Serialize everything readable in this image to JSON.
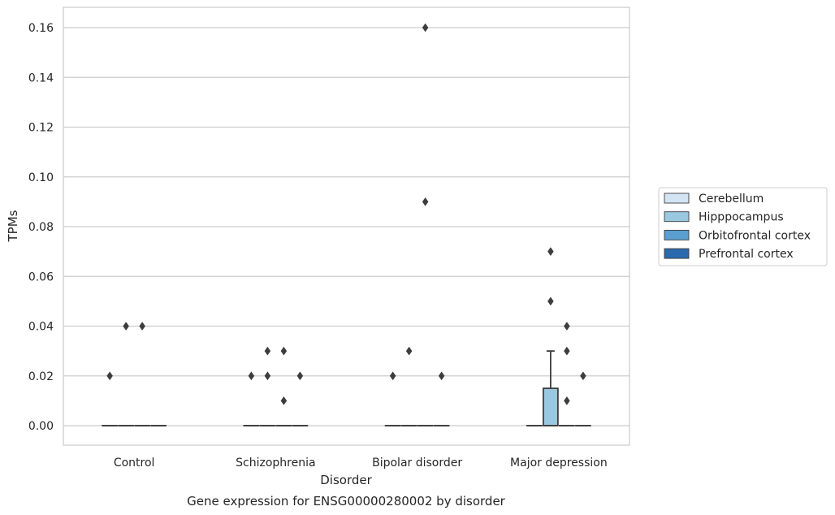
{
  "chart_data": {
    "type": "box",
    "title": "",
    "caption": "Gene expression for ENSG00000280002 by disorder",
    "xlabel": "Disorder",
    "ylabel": "TPMs",
    "ylim": [
      -0.008,
      0.168
    ],
    "yticks": [
      0.0,
      0.02,
      0.04,
      0.06,
      0.08,
      0.1,
      0.12,
      0.14,
      0.16
    ],
    "ytick_labels": [
      "0.00",
      "0.02",
      "0.04",
      "0.06",
      "0.08",
      "0.10",
      "0.12",
      "0.14",
      "0.16"
    ],
    "grid": "horizontal",
    "legend_position": "right",
    "categories": [
      "Control",
      "Schizophrenia",
      "Bipolar disorder",
      "Major depression"
    ],
    "series": [
      {
        "name": "Cerebellum",
        "color": "#d3e4f3",
        "boxes": [
          {
            "q1": 0,
            "median": 0,
            "q3": 0,
            "whisker_low": 0,
            "whisker_high": 0,
            "outliers": [
              0.02
            ]
          },
          {
            "q1": 0,
            "median": 0,
            "q3": 0,
            "whisker_low": 0,
            "whisker_high": 0,
            "outliers": [
              0.02
            ]
          },
          {
            "q1": 0,
            "median": 0,
            "q3": 0,
            "whisker_low": 0,
            "whisker_high": 0,
            "outliers": [
              0.02
            ]
          },
          {
            "q1": 0,
            "median": 0,
            "q3": 0,
            "whisker_low": 0,
            "whisker_high": 0,
            "outliers": []
          }
        ]
      },
      {
        "name": "Hipppocampus",
        "color": "#9ac8e0",
        "boxes": [
          {
            "q1": 0,
            "median": 0,
            "q3": 0,
            "whisker_low": 0,
            "whisker_high": 0,
            "outliers": [
              0.04
            ]
          },
          {
            "q1": 0,
            "median": 0,
            "q3": 0,
            "whisker_low": 0,
            "whisker_high": 0,
            "outliers": [
              0.03,
              0.02
            ]
          },
          {
            "q1": 0,
            "median": 0,
            "q3": 0,
            "whisker_low": 0,
            "whisker_high": 0,
            "outliers": [
              0.03
            ]
          },
          {
            "q1": 0,
            "median": 0,
            "q3": 0.015,
            "whisker_low": 0,
            "whisker_high": 0.03,
            "outliers": [
              0.07,
              0.05
            ]
          }
        ]
      },
      {
        "name": "Orbitofrontal cortex",
        "color": "#5a9fcf",
        "boxes": [
          {
            "q1": 0,
            "median": 0,
            "q3": 0,
            "whisker_low": 0,
            "whisker_high": 0,
            "outliers": [
              0.04
            ]
          },
          {
            "q1": 0,
            "median": 0,
            "q3": 0,
            "whisker_low": 0,
            "whisker_high": 0,
            "outliers": [
              0.03,
              0.01
            ]
          },
          {
            "q1": 0,
            "median": 0,
            "q3": 0,
            "whisker_low": 0,
            "whisker_high": 0,
            "outliers": [
              0.16,
              0.09
            ]
          },
          {
            "q1": 0,
            "median": 0,
            "q3": 0,
            "whisker_low": 0,
            "whisker_high": 0,
            "outliers": [
              0.04,
              0.03,
              0.01
            ]
          }
        ]
      },
      {
        "name": "Prefrontal cortex",
        "color": "#2a6aad",
        "boxes": [
          {
            "q1": 0,
            "median": 0,
            "q3": 0,
            "whisker_low": 0,
            "whisker_high": 0,
            "outliers": []
          },
          {
            "q1": 0,
            "median": 0,
            "q3": 0,
            "whisker_low": 0,
            "whisker_high": 0,
            "outliers": [
              0.02
            ]
          },
          {
            "q1": 0,
            "median": 0,
            "q3": 0,
            "whisker_low": 0,
            "whisker_high": 0,
            "outliers": [
              0.02
            ]
          },
          {
            "q1": 0,
            "median": 0,
            "q3": 0,
            "whisker_low": 0,
            "whisker_high": 0,
            "outliers": [
              0.02
            ]
          }
        ]
      }
    ]
  }
}
